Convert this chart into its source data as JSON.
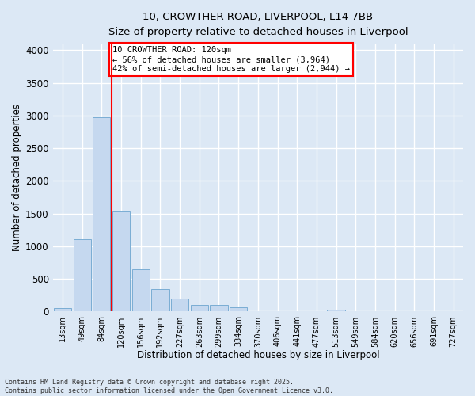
{
  "title_line1": "10, CROWTHER ROAD, LIVERPOOL, L14 7BB",
  "title_line2": "Size of property relative to detached houses in Liverpool",
  "xlabel": "Distribution of detached houses by size in Liverpool",
  "ylabel": "Number of detached properties",
  "categories": [
    "13sqm",
    "49sqm",
    "84sqm",
    "120sqm",
    "156sqm",
    "192sqm",
    "227sqm",
    "263sqm",
    "299sqm",
    "334sqm",
    "370sqm",
    "406sqm",
    "441sqm",
    "477sqm",
    "513sqm",
    "549sqm",
    "584sqm",
    "620sqm",
    "656sqm",
    "691sqm",
    "727sqm"
  ],
  "values": [
    55,
    1110,
    2970,
    1530,
    650,
    340,
    200,
    100,
    100,
    70,
    0,
    0,
    0,
    0,
    30,
    0,
    0,
    0,
    0,
    0,
    0
  ],
  "bar_color": "#c5d8ef",
  "bar_edge_color": "#7aadd4",
  "vline_color": "red",
  "annotation_text": "10 CROWTHER ROAD: 120sqm\n← 56% of detached houses are smaller (3,964)\n42% of semi-detached houses are larger (2,944) →",
  "annotation_box_color": "red",
  "annotation_text_color": "black",
  "ylim": [
    0,
    4100
  ],
  "yticks": [
    0,
    500,
    1000,
    1500,
    2000,
    2500,
    3000,
    3500,
    4000
  ],
  "footnote": "Contains HM Land Registry data © Crown copyright and database right 2025.\nContains public sector information licensed under the Open Government Licence v3.0.",
  "background_color": "#dce8f5",
  "plot_bg_color": "#dce8f5",
  "grid_color": "white"
}
